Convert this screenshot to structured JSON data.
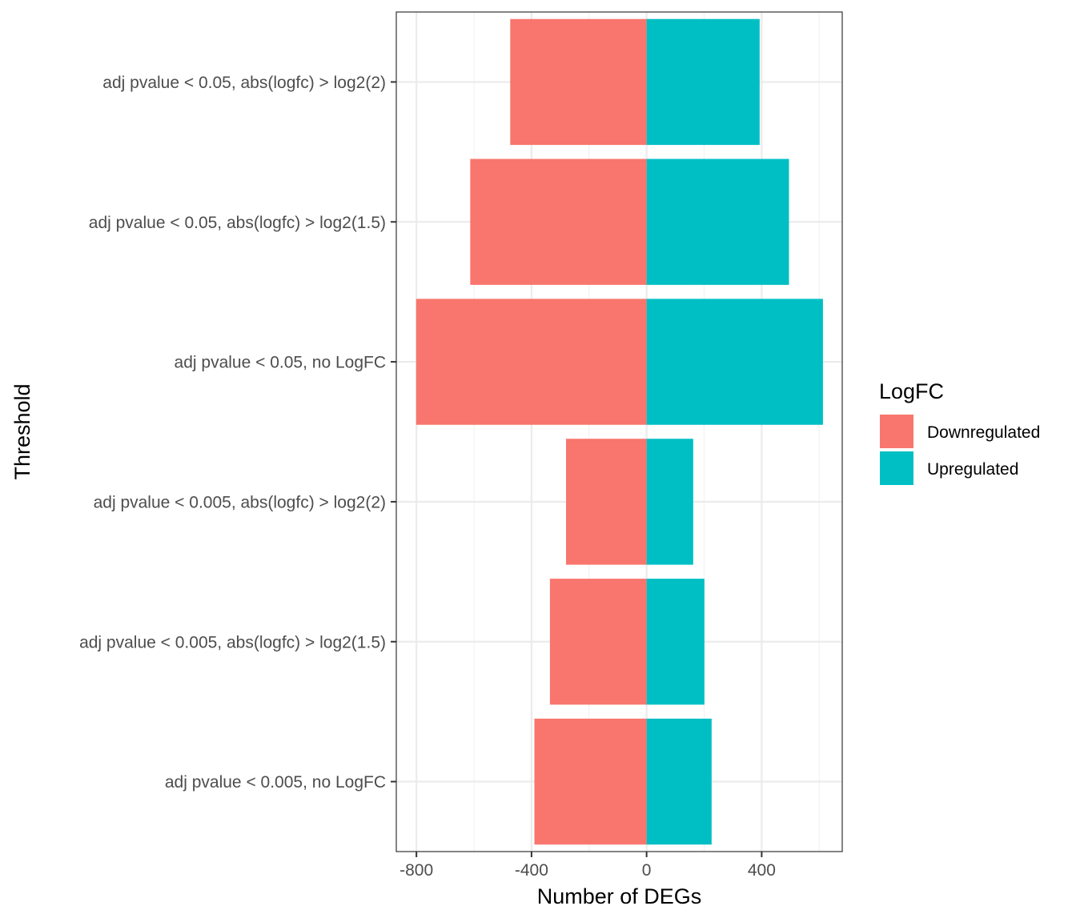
{
  "chart_data": {
    "type": "bar",
    "orientation": "horizontal",
    "stacked": "diverging",
    "xlabel": "Number of DEGs",
    "ylabel": "Threshold",
    "xlim": [
      -870,
      680
    ],
    "xticks": [
      -800,
      -400,
      0,
      400
    ],
    "xtick_labels": [
      "-800",
      "-400",
      "0",
      "400"
    ],
    "grid": true,
    "categories": [
      "adj pvalue < 0.05, abs(logfc) > log2(2)",
      "adj pvalue < 0.05, abs(logfc) > log2(1.5)",
      "adj pvalue < 0.05, no LogFC",
      "adj pvalue < 0.005, abs(logfc) > log2(2)",
      "adj pvalue < 0.005, abs(logfc) > log2(1.5)",
      "adj pvalue < 0.005, no LogFC"
    ],
    "series": [
      {
        "name": "Downregulated",
        "color": "#F8766D",
        "values": [
          -474,
          -613,
          -801,
          -280,
          -336,
          -390
        ]
      },
      {
        "name": "Upregulated",
        "color": "#00BFC4",
        "values": [
          393,
          495,
          613,
          162,
          201,
          226
        ]
      }
    ],
    "legend": {
      "title": "LogFC",
      "position": "right",
      "items": [
        "Downregulated",
        "Upregulated"
      ]
    }
  }
}
